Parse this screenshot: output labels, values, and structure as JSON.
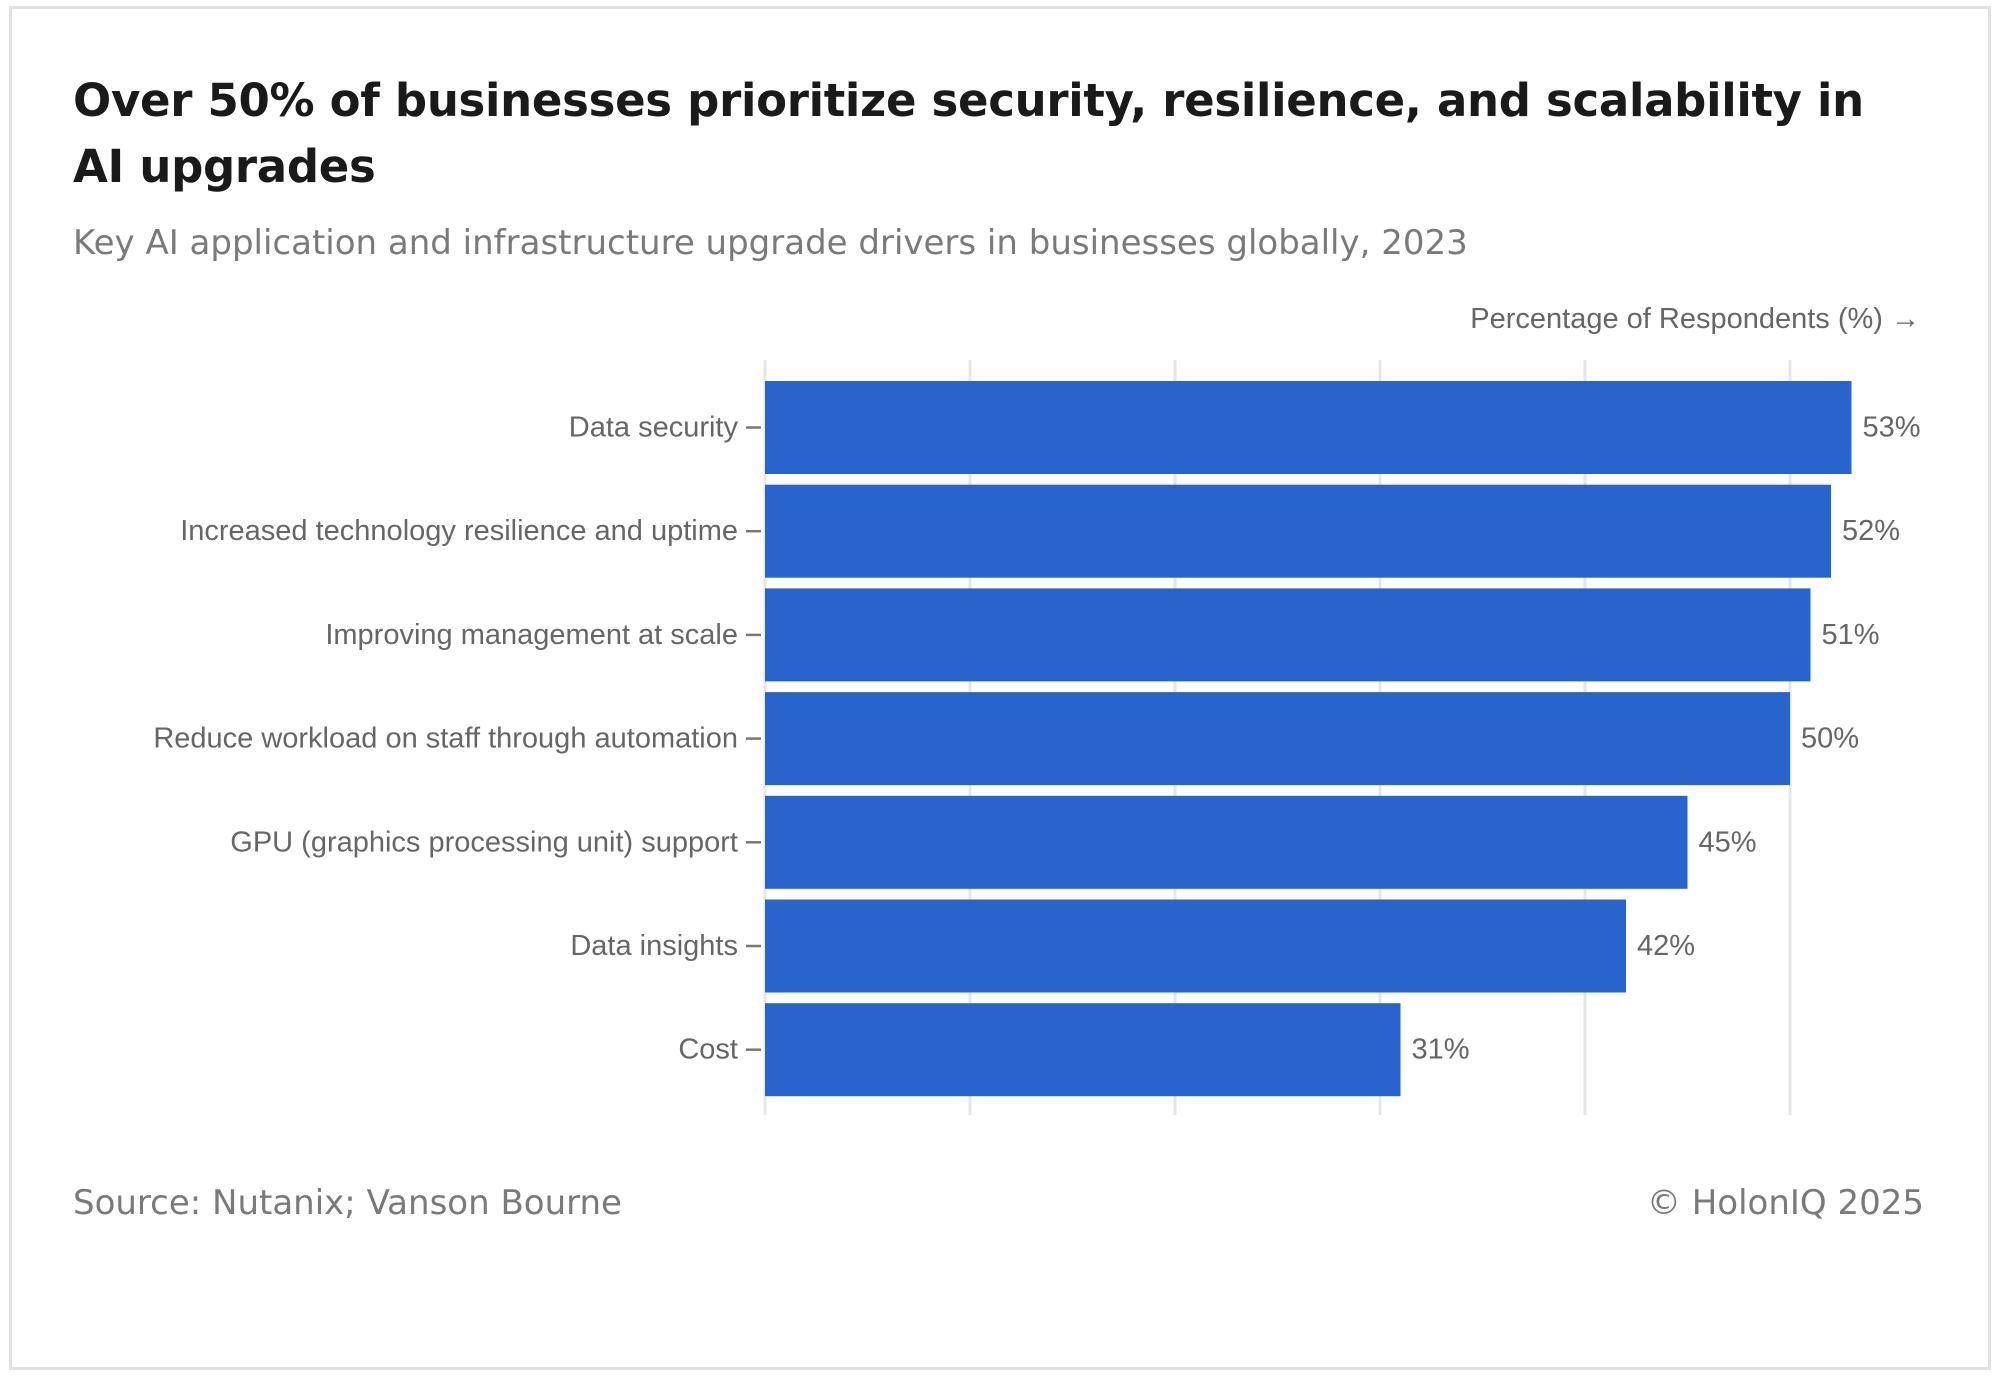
{
  "header": {
    "title": "Over 50% of businesses prioritize security, resilience, and scalability in AI upgrades",
    "subtitle": "Key AI application and infrastructure upgrade drivers in businesses globally, 2023"
  },
  "footer": {
    "source": "Source: Nutanix; Vanson Bourne",
    "copyright": "© HolonIQ 2025"
  },
  "colors": {
    "bar": "#2864cc",
    "grid": "#e6e6e6",
    "label": "#666666"
  },
  "chart_data": {
    "type": "bar",
    "orientation": "horizontal",
    "xlabel": "Percentage of Respondents (%) →",
    "ylabel": "",
    "xlim": [
      0,
      56
    ],
    "grid": true,
    "categories": [
      "Data security",
      "Increased technology resilience and uptime",
      "Improving management at scale",
      "Reduce workload on staff through automation",
      "GPU (graphics processing unit) support",
      "Data insights",
      "Cost"
    ],
    "values": [
      53,
      52,
      51,
      50,
      45,
      42,
      31
    ],
    "value_labels": [
      "53%",
      "52%",
      "51%",
      "50%",
      "45%",
      "42%",
      "31%"
    ]
  }
}
